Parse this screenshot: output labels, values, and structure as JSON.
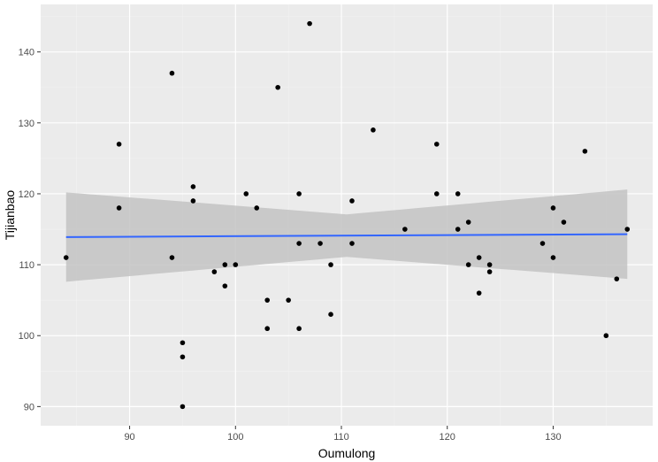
{
  "chart_data": {
    "type": "scatter",
    "xlabel": "Oumulong",
    "ylabel": "Tijianbao",
    "xlim": [
      81.6,
      139.4
    ],
    "ylim": [
      87.3,
      146.7
    ],
    "x_ticks": [
      90,
      100,
      110,
      120,
      130
    ],
    "y_ticks": [
      90,
      100,
      110,
      120,
      130,
      140
    ],
    "grid": true,
    "points": [
      {
        "x": 84,
        "y": 111
      },
      {
        "x": 89,
        "y": 127
      },
      {
        "x": 89,
        "y": 118
      },
      {
        "x": 94,
        "y": 137
      },
      {
        "x": 94,
        "y": 111
      },
      {
        "x": 95,
        "y": 99
      },
      {
        "x": 95,
        "y": 97
      },
      {
        "x": 95,
        "y": 90
      },
      {
        "x": 96,
        "y": 121
      },
      {
        "x": 96,
        "y": 119
      },
      {
        "x": 98,
        "y": 109
      },
      {
        "x": 99,
        "y": 110
      },
      {
        "x": 99,
        "y": 107
      },
      {
        "x": 100,
        "y": 110
      },
      {
        "x": 101,
        "y": 120
      },
      {
        "x": 102,
        "y": 118
      },
      {
        "x": 103,
        "y": 105
      },
      {
        "x": 103,
        "y": 101
      },
      {
        "x": 104,
        "y": 135
      },
      {
        "x": 105,
        "y": 105
      },
      {
        "x": 106,
        "y": 120
      },
      {
        "x": 106,
        "y": 113
      },
      {
        "x": 106,
        "y": 101
      },
      {
        "x": 107,
        "y": 144
      },
      {
        "x": 108,
        "y": 113
      },
      {
        "x": 109,
        "y": 110
      },
      {
        "x": 109,
        "y": 103
      },
      {
        "x": 111,
        "y": 119
      },
      {
        "x": 111,
        "y": 113
      },
      {
        "x": 113,
        "y": 129
      },
      {
        "x": 116,
        "y": 115
      },
      {
        "x": 119,
        "y": 127
      },
      {
        "x": 119,
        "y": 120
      },
      {
        "x": 121,
        "y": 120
      },
      {
        "x": 121,
        "y": 115
      },
      {
        "x": 122,
        "y": 116
      },
      {
        "x": 122,
        "y": 110
      },
      {
        "x": 123,
        "y": 111
      },
      {
        "x": 123,
        "y": 106
      },
      {
        "x": 124,
        "y": 110
      },
      {
        "x": 124,
        "y": 109
      },
      {
        "x": 129,
        "y": 113
      },
      {
        "x": 130,
        "y": 118
      },
      {
        "x": 130,
        "y": 111
      },
      {
        "x": 131,
        "y": 116
      },
      {
        "x": 133,
        "y": 126
      },
      {
        "x": 135,
        "y": 100
      },
      {
        "x": 136,
        "y": 108
      },
      {
        "x": 137,
        "y": 115
      }
    ],
    "smooth": {
      "method": "linear",
      "x": [
        84,
        137
      ],
      "y": [
        113.9,
        114.3
      ],
      "ci_lower": [
        107.6,
        107.9
      ],
      "ci_upper": [
        120.2,
        120.5
      ]
    },
    "colors": {
      "panel_background": "#ebebeb",
      "grid_major": "#ffffff",
      "grid_minor": "#f2f2f2",
      "point": "#000000",
      "line": "#3366ff",
      "ribbon": "#c3c3c3"
    }
  }
}
